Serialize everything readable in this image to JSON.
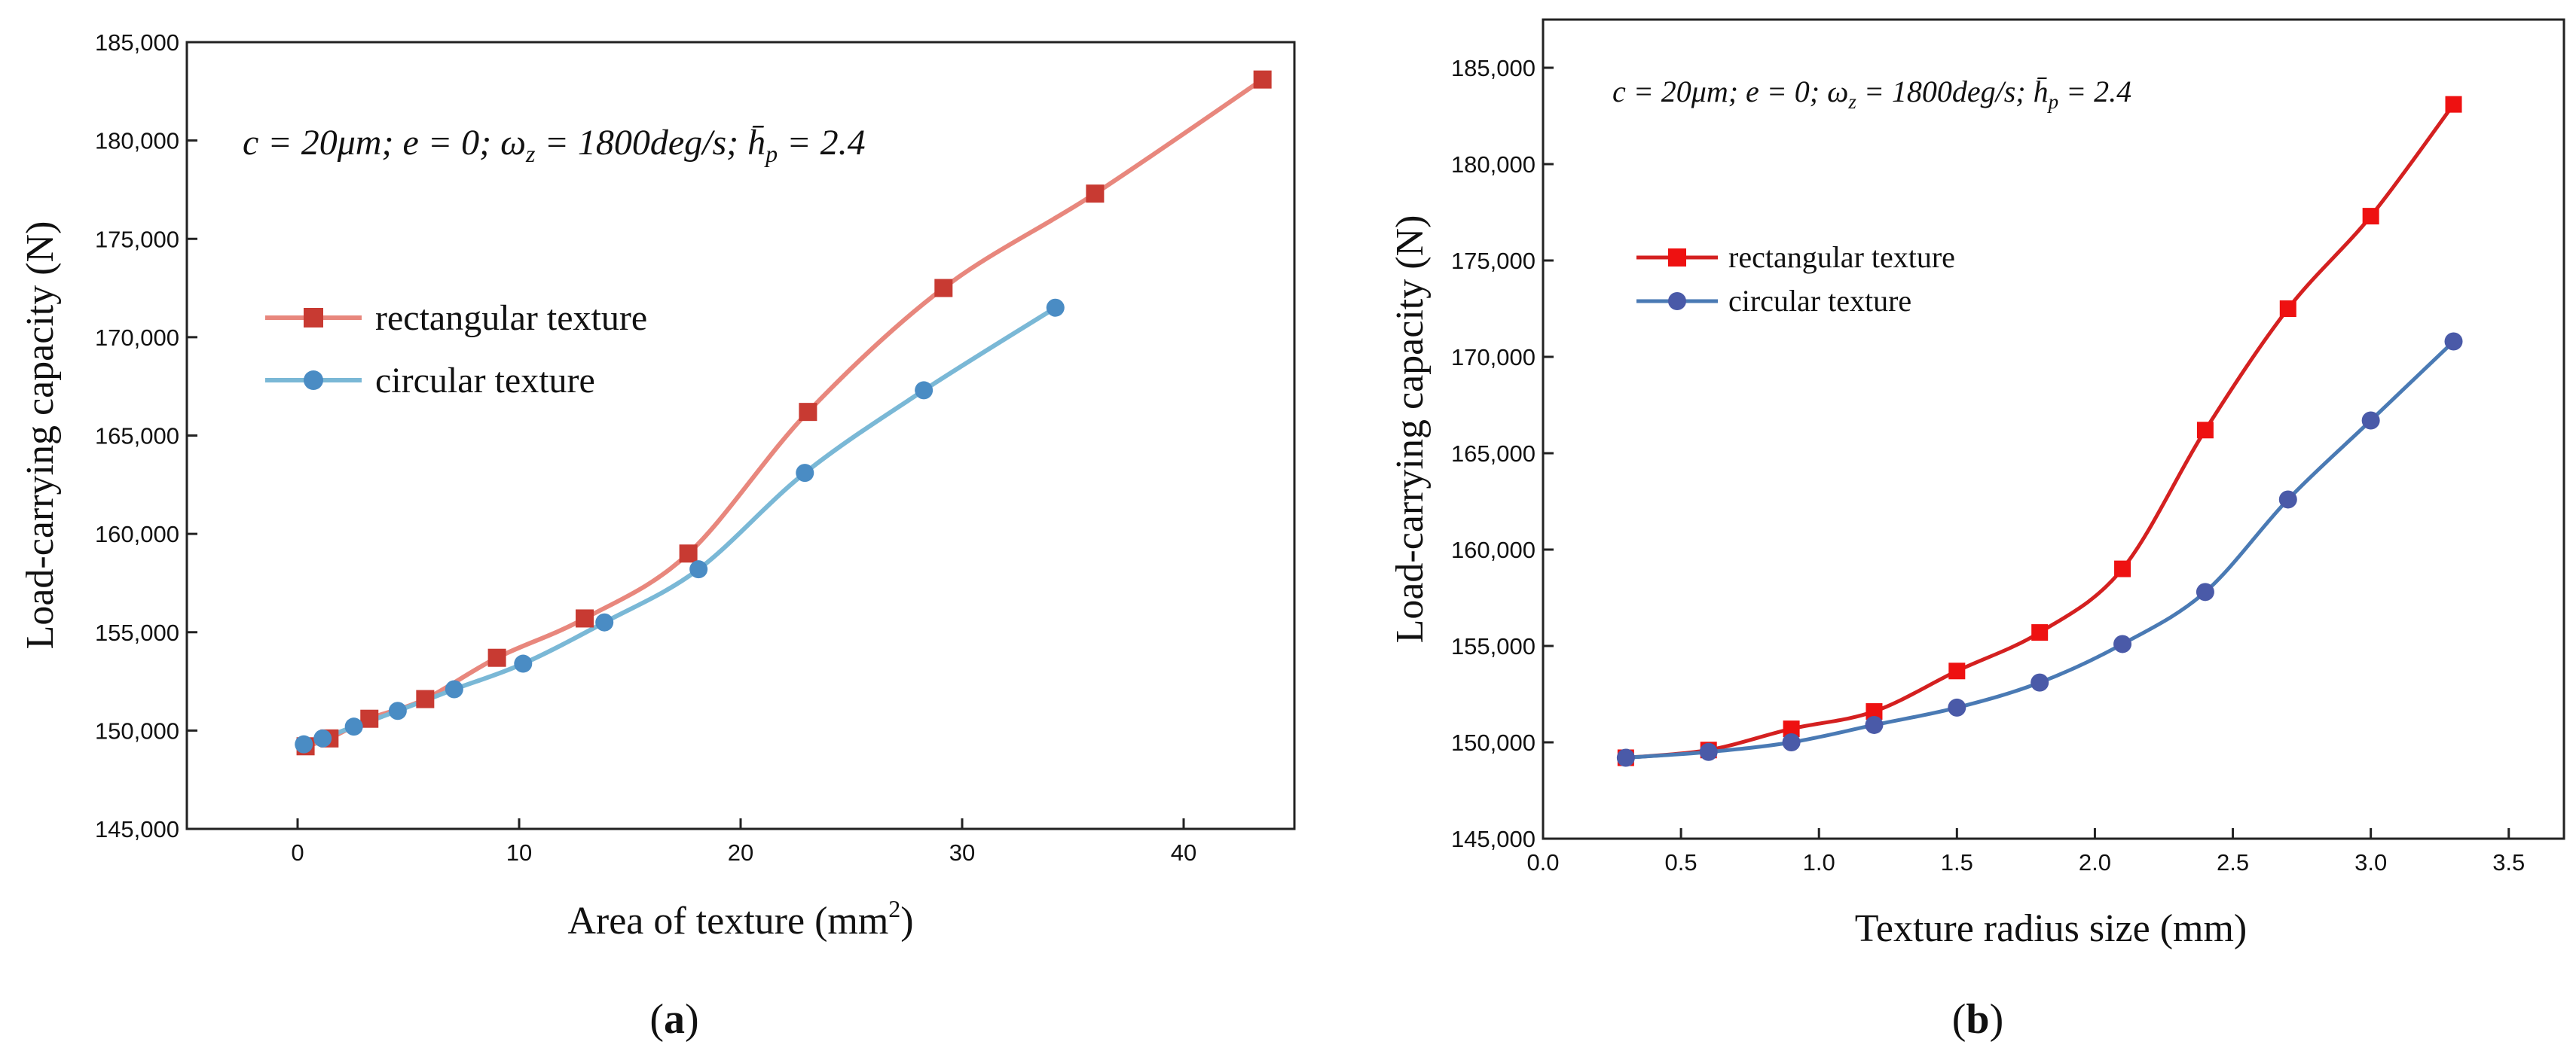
{
  "chart_data": [
    {
      "type": "line",
      "panel_label": "a",
      "annotation": "c = 20μm; e = 0; ωz = 1800deg/s; h̄p = 2.4",
      "xlabel": "Area of texture (mm²)",
      "ylabel": "Load-carrying capacity (N)",
      "xlim": [
        -5,
        45
      ],
      "ylim": [
        145000,
        185000
      ],
      "xticks": [
        0,
        10,
        20,
        30,
        40
      ],
      "yticks": [
        145000,
        150000,
        155000,
        160000,
        165000,
        170000,
        175000,
        180000,
        185000
      ],
      "ytick_labels": [
        "145,000",
        "150,000",
        "155,000",
        "160,000",
        "165,000",
        "170,000",
        "175,000",
        "180,000",
        "185,000"
      ],
      "legend_position": "center-left",
      "series": [
        {
          "name": "rectangular texture",
          "marker": "square",
          "color": "#e8877d",
          "marker_color": "#c83a32",
          "x": [
            0.36,
            1.44,
            3.24,
            5.76,
            9.0,
            12.96,
            17.64,
            23.04,
            29.16,
            36.0,
            43.56
          ],
          "y": [
            149200,
            149600,
            150600,
            151600,
            153700,
            155700,
            159000,
            166200,
            172500,
            177300,
            183100
          ]
        },
        {
          "name": "circular texture",
          "marker": "circle",
          "color": "#7ab8d6",
          "marker_color": "#4a8cc4",
          "x": [
            0.28,
            1.13,
            2.54,
            4.52,
            7.07,
            10.18,
            13.85,
            18.1,
            22.9,
            28.27,
            34.21
          ],
          "y": [
            149300,
            149600,
            150200,
            151000,
            152100,
            153400,
            155500,
            158200,
            163100,
            167300,
            171500
          ]
        }
      ]
    },
    {
      "type": "line",
      "panel_label": "b",
      "annotation": "c = 20μm; e = 0; ωz = 1800deg/s; h̄p = 2.4",
      "xlabel": "Texture radius size (mm)",
      "ylabel": "Load-carrying capacity (N)",
      "xlim": [
        0.0,
        3.7
      ],
      "ylim": [
        145000,
        187500
      ],
      "xticks": [
        0.0,
        0.5,
        1.0,
        1.5,
        2.0,
        2.5,
        3.0,
        3.5
      ],
      "xtick_labels": [
        "0.0",
        "0.5",
        "1.0",
        "1.5",
        "2.0",
        "2.5",
        "3.0",
        "3.5"
      ],
      "yticks": [
        145000,
        150000,
        155000,
        160000,
        165000,
        170000,
        175000,
        180000,
        185000
      ],
      "ytick_labels": [
        "145,000",
        "150,000",
        "155,000",
        "160,000",
        "165,000",
        "170,000",
        "175,000",
        "180,000",
        "185,000"
      ],
      "legend_position": "upper-left",
      "series": [
        {
          "name": "rectangular texture",
          "marker": "square",
          "color": "#d42020",
          "marker_color": "#ee1111",
          "x": [
            0.3,
            0.6,
            0.9,
            1.2,
            1.5,
            1.8,
            2.1,
            2.4,
            2.7,
            3.0,
            3.3
          ],
          "y": [
            149200,
            149600,
            150700,
            151600,
            153700,
            155700,
            159000,
            166200,
            172500,
            177300,
            183100
          ]
        },
        {
          "name": "circular texture",
          "marker": "circle",
          "color": "#4a7ab4",
          "marker_color": "#4a5aa8",
          "x": [
            0.3,
            0.6,
            0.9,
            1.2,
            1.5,
            1.8,
            2.1,
            2.4,
            2.7,
            3.0,
            3.3
          ],
          "y": [
            149200,
            149500,
            150000,
            150900,
            151800,
            153100,
            155100,
            157800,
            162600,
            166700,
            170800
          ]
        }
      ]
    }
  ]
}
